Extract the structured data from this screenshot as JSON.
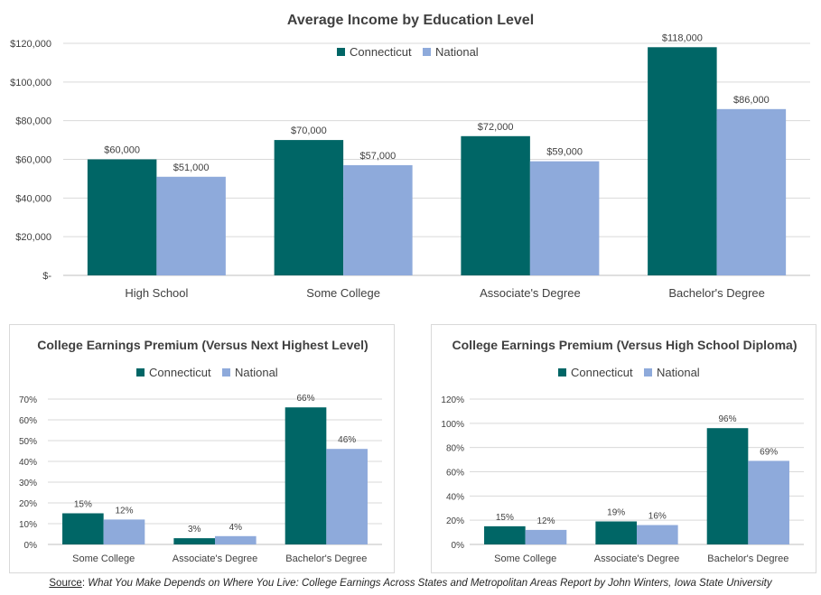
{
  "colors": {
    "connecticut": "#006666",
    "national": "#8eaadb",
    "grid": "#d9d9d9",
    "axis": "#bfbfbf"
  },
  "chart_data": [
    {
      "id": "chart-main",
      "type": "bar",
      "title": "Average Income by Education Level",
      "categories": [
        "High School",
        "Some College",
        "Associate's Degree",
        "Bachelor's Degree"
      ],
      "series": [
        {
          "name": "Connecticut",
          "values": [
            60000,
            70000,
            72000,
            118000
          ],
          "labels": [
            "$60,000",
            "$70,000",
            "$72,000",
            "$118,000"
          ]
        },
        {
          "name": "National",
          "values": [
            51000,
            57000,
            59000,
            86000
          ],
          "labels": [
            "$51,000",
            "$57,000",
            "$59,000",
            "$86,000"
          ]
        }
      ],
      "ylim": [
        0,
        120000
      ],
      "yticks": [
        0,
        20000,
        40000,
        60000,
        80000,
        100000,
        120000
      ],
      "ytick_labels": [
        "$-",
        "$20,000",
        "$40,000",
        "$60,000",
        "$80,000",
        "$100,000",
        "$120,000"
      ],
      "grid": true,
      "legend": "top-center"
    },
    {
      "id": "chart-next",
      "type": "bar",
      "title": "College Earnings Premium (Versus Next Highest Level)",
      "categories": [
        "Some College",
        "Associate's Degree",
        "Bachelor's Degree"
      ],
      "series": [
        {
          "name": "Connecticut",
          "values": [
            15,
            3,
            66
          ],
          "labels": [
            "15%",
            "3%",
            "66%"
          ]
        },
        {
          "name": "National",
          "values": [
            12,
            4,
            46
          ],
          "labels": [
            "12%",
            "4%",
            "46%"
          ]
        }
      ],
      "ylim": [
        0,
        70
      ],
      "yticks": [
        0,
        10,
        20,
        30,
        40,
        50,
        60,
        70
      ],
      "ytick_labels": [
        "0%",
        "10%",
        "20%",
        "30%",
        "40%",
        "50%",
        "60%",
        "70%"
      ],
      "grid": true,
      "legend": "top-center"
    },
    {
      "id": "chart-hs",
      "type": "bar",
      "title": "College Earnings Premium (Versus High School Diploma)",
      "categories": [
        "Some College",
        "Associate's Degree",
        "Bachelor's Degree"
      ],
      "series": [
        {
          "name": "Connecticut",
          "values": [
            15,
            19,
            96
          ],
          "labels": [
            "15%",
            "19%",
            "96%"
          ]
        },
        {
          "name": "National",
          "values": [
            12,
            16,
            69
          ],
          "labels": [
            "12%",
            "16%",
            "69%"
          ]
        }
      ],
      "ylim": [
        0,
        120
      ],
      "yticks": [
        0,
        20,
        40,
        60,
        80,
        100,
        120
      ],
      "ytick_labels": [
        "0%",
        "20%",
        "40%",
        "60%",
        "80%",
        "100%",
        "120%"
      ],
      "grid": true,
      "legend": "top-center"
    }
  ],
  "source": {
    "label": "Source",
    "separator": ": ",
    "text": "What You Make Depends on Where You Live: College Earnings Across States and Metropolitan Areas Report by John Winters, Iowa State University"
  }
}
